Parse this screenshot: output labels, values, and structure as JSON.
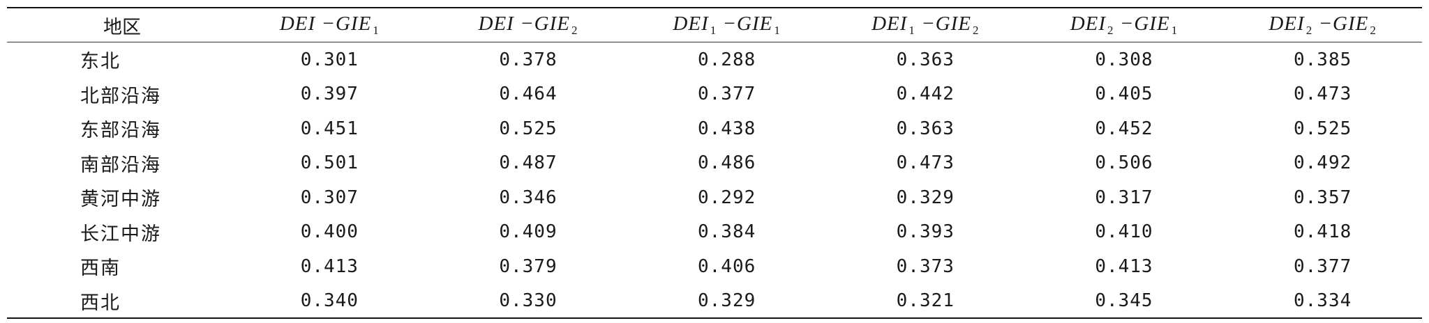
{
  "table": {
    "region_header": "地区",
    "metric_headers": [
      {
        "base": "DEI −GIE",
        "sub": "1"
      },
      {
        "base": "DEI −GIE",
        "sub": "2"
      },
      {
        "left": "DEI",
        "lsub": "1",
        "right": " −GIE",
        "rsub": "1"
      },
      {
        "left": "DEI",
        "lsub": "1",
        "right": " −GIE",
        "rsub": "2"
      },
      {
        "left": "DEI",
        "lsub": "2",
        "right": " −GIE",
        "rsub": "1"
      },
      {
        "left": "DEI",
        "lsub": "2",
        "right": " −GIE",
        "rsub": "2"
      }
    ],
    "rows": [
      {
        "region": "东北",
        "values": [
          "0.301",
          "0.378",
          "0.288",
          "0.363",
          "0.308",
          "0.385"
        ]
      },
      {
        "region": "北部沿海",
        "values": [
          "0.397",
          "0.464",
          "0.377",
          "0.442",
          "0.405",
          "0.473"
        ]
      },
      {
        "region": "东部沿海",
        "values": [
          "0.451",
          "0.525",
          "0.438",
          "0.363",
          "0.452",
          "0.525"
        ]
      },
      {
        "region": "南部沿海",
        "values": [
          "0.501",
          "0.487",
          "0.486",
          "0.473",
          "0.506",
          "0.492"
        ]
      },
      {
        "region": "黄河中游",
        "values": [
          "0.307",
          "0.346",
          "0.292",
          "0.329",
          "0.317",
          "0.357"
        ]
      },
      {
        "region": "长江中游",
        "values": [
          "0.400",
          "0.409",
          "0.384",
          "0.393",
          "0.410",
          "0.418"
        ]
      },
      {
        "region": "西南",
        "values": [
          "0.413",
          "0.379",
          "0.406",
          "0.373",
          "0.413",
          "0.377"
        ]
      },
      {
        "region": "西北",
        "values": [
          "0.340",
          "0.330",
          "0.329",
          "0.321",
          "0.345",
          "0.334"
        ]
      }
    ]
  }
}
